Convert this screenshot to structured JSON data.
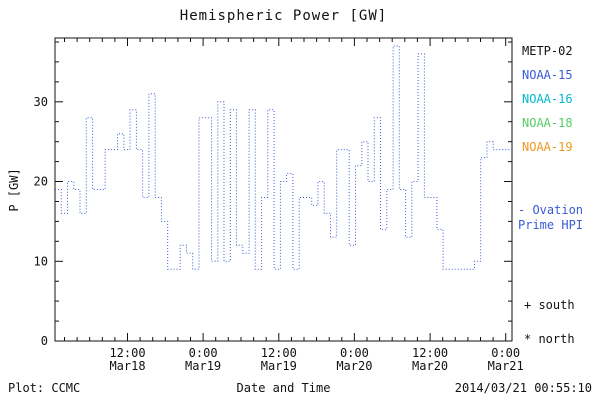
{
  "footer": {
    "left": "Plot: CCMC",
    "right": "2014/03/21 00:55:10"
  },
  "legend": {
    "satellites": [
      {
        "label": "METP-02",
        "color": "#111111"
      },
      {
        "label": "NOAA-15",
        "color": "#3a5bd9"
      },
      {
        "label": "NOAA-16",
        "color": "#00b8cc"
      },
      {
        "label": "NOAA-18",
        "color": "#55cc66"
      },
      {
        "label": "NOAA-19",
        "color": "#ee9922"
      }
    ],
    "ovation": {
      "line1": "- Ovation",
      "line2": "Prime HPI",
      "color": "#3a5bd9"
    },
    "markers": [
      {
        "label": "+ south"
      },
      {
        "label": "* north"
      }
    ]
  },
  "chart_data": {
    "type": "line",
    "subtype": "dotted-step",
    "title": "Hemispheric Power [GW]",
    "xlabel": "Date and Time",
    "ylabel": "P [GW]",
    "ylim": [
      0,
      38
    ],
    "y_ticks": [
      0,
      10,
      20,
      30
    ],
    "y_minor_step": 2.5,
    "xlim_hours": [
      0,
      72.5
    ],
    "x_minor_step": 2,
    "x_ticks": [
      {
        "pos": 11.5,
        "time": "12:00",
        "date": "Mar18"
      },
      {
        "pos": 23.5,
        "time": "0:00",
        "date": "Mar19"
      },
      {
        "pos": 35.5,
        "time": "12:00",
        "date": "Mar19"
      },
      {
        "pos": 47.5,
        "time": "0:00",
        "date": "Mar20"
      },
      {
        "pos": 59.5,
        "time": "12:00",
        "date": "Mar20"
      },
      {
        "pos": 71.5,
        "time": "0:00",
        "date": "Mar21"
      }
    ],
    "grid": false,
    "legend_position": "right",
    "series": [
      {
        "name": "Ovation Prime HPI",
        "color": "#3a5bd9",
        "values": [
          19,
          16,
          20,
          19,
          16,
          28,
          19,
          19,
          24,
          24,
          26,
          24,
          29,
          24,
          18,
          31,
          18,
          15,
          9,
          9,
          12,
          11,
          9,
          28,
          28,
          10,
          30,
          10,
          29,
          12,
          11,
          29,
          9,
          18,
          29,
          9,
          20,
          21,
          9,
          18,
          18,
          17,
          20,
          16,
          13,
          24,
          24,
          12,
          22,
          25,
          20,
          28,
          14,
          19,
          37,
          19,
          13,
          20,
          36,
          18,
          18,
          14,
          9,
          9,
          9,
          9,
          9,
          10,
          23,
          25,
          24,
          24,
          24
        ]
      }
    ]
  }
}
